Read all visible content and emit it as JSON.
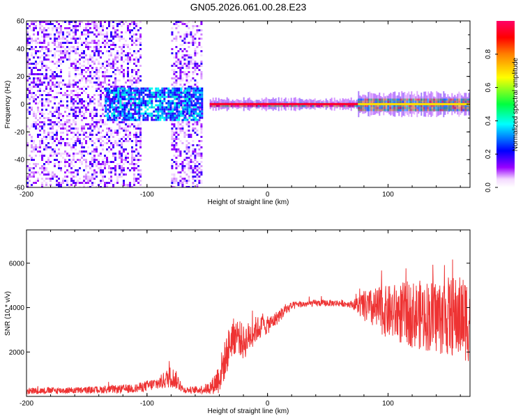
{
  "page_title": "GN05.2026.061.00.28.E23",
  "chart_data": [
    {
      "type": "heatmap",
      "title": "GN05.2026.061.00.28.E23",
      "xlabel": "Height of straight line (km)",
      "ylabel": "Frequency (Hz)",
      "xlim": [
        -200,
        168
      ],
      "ylim": [
        -60,
        60
      ],
      "xticks": [
        -200,
        -100,
        0,
        100
      ],
      "xtick_labels": [
        "-200",
        "-100",
        "0",
        "100"
      ],
      "yticks": [
        -60,
        -40,
        -20,
        0,
        20,
        40,
        60
      ],
      "ytick_labels": [
        "-60",
        "-40",
        "-20",
        "0",
        "20",
        "40",
        "60"
      ],
      "colorbar": {
        "label": "Normalized spectral amplitude",
        "range": [
          0,
          1
        ],
        "ticks": [
          0.0,
          0.2,
          0.4,
          0.6,
          0.8
        ],
        "tick_labels": [
          "0.0",
          "0.2",
          "0.4",
          "0.6",
          "0.8"
        ],
        "colors": [
          "#ffffff",
          "#ff00ff",
          "#6600ff",
          "#0000ff",
          "#00ffff",
          "#00ff00",
          "#ffff00",
          "#ff8000",
          "#ff0000",
          "#ff0066"
        ]
      },
      "regions": [
        {
          "x": [
            -200,
            -105
          ],
          "f_range": [
            -60,
            60
          ],
          "amplitude": 0.12,
          "note": "broadband noise"
        },
        {
          "x": [
            -105,
            -80
          ],
          "f_range": [
            -60,
            60
          ],
          "amplitude": 0.0,
          "note": "gap"
        },
        {
          "x": [
            -80,
            -55
          ],
          "f_range": [
            -60,
            60
          ],
          "amplitude": 0.12,
          "note": "broadband noise"
        },
        {
          "x": [
            -135,
            -55
          ],
          "f_range": [
            -12,
            12
          ],
          "amplitude": 0.35,
          "note": "low-frequency cluster"
        },
        {
          "x": [
            -48,
            75
          ],
          "f_range": [
            -1,
            1
          ],
          "amplitude": 0.95,
          "note": "narrow signal line"
        },
        {
          "x": [
            75,
            168
          ],
          "f_range": [
            -4,
            4
          ],
          "amplitude": 0.7,
          "note": "wider signal band"
        }
      ]
    },
    {
      "type": "line",
      "xlabel": "Height of straight line (km)",
      "ylabel": "SNR (10 * v/v)",
      "xlim": [
        -200,
        168
      ],
      "ylim": [
        0,
        7500
      ],
      "xticks": [
        -200,
        -100,
        0,
        100
      ],
      "xtick_labels": [
        "-200",
        "-100",
        "0",
        "100"
      ],
      "yticks": [
        2000,
        4000,
        6000
      ],
      "ytick_labels": [
        "2000",
        "4000",
        "6000"
      ],
      "color": "#ee3333",
      "series": [
        {
          "name": "SNR",
          "x": [
            -200,
            -150,
            -110,
            -90,
            -80,
            -75,
            -70,
            -60,
            -50,
            -45,
            -40,
            -35,
            -30,
            -25,
            -20,
            -15,
            -10,
            -5,
            0,
            5,
            10,
            15,
            20,
            25,
            30,
            40,
            50,
            60,
            70,
            80,
            90,
            100,
            110,
            120,
            130,
            140,
            150,
            160,
            168
          ],
          "values": [
            250,
            280,
            350,
            600,
            900,
            700,
            300,
            280,
            350,
            500,
            900,
            1700,
            2600,
            2800,
            2400,
            2700,
            3000,
            3150,
            3200,
            3400,
            3650,
            3900,
            4050,
            4150,
            4150,
            4200,
            4200,
            4200,
            4150,
            4050,
            3900,
            3800,
            3750,
            3700,
            3650,
            3600,
            3600,
            3550,
            3500
          ],
          "spread": [
            150,
            150,
            200,
            300,
            500,
            400,
            150,
            150,
            250,
            400,
            800,
            900,
            900,
            800,
            800,
            700,
            600,
            500,
            400,
            350,
            300,
            250,
            200,
            150,
            150,
            150,
            150,
            150,
            150,
            700,
            1000,
            1200,
            1400,
            1500,
            1600,
            1700,
            1800,
            1900,
            2000
          ]
        }
      ]
    }
  ]
}
